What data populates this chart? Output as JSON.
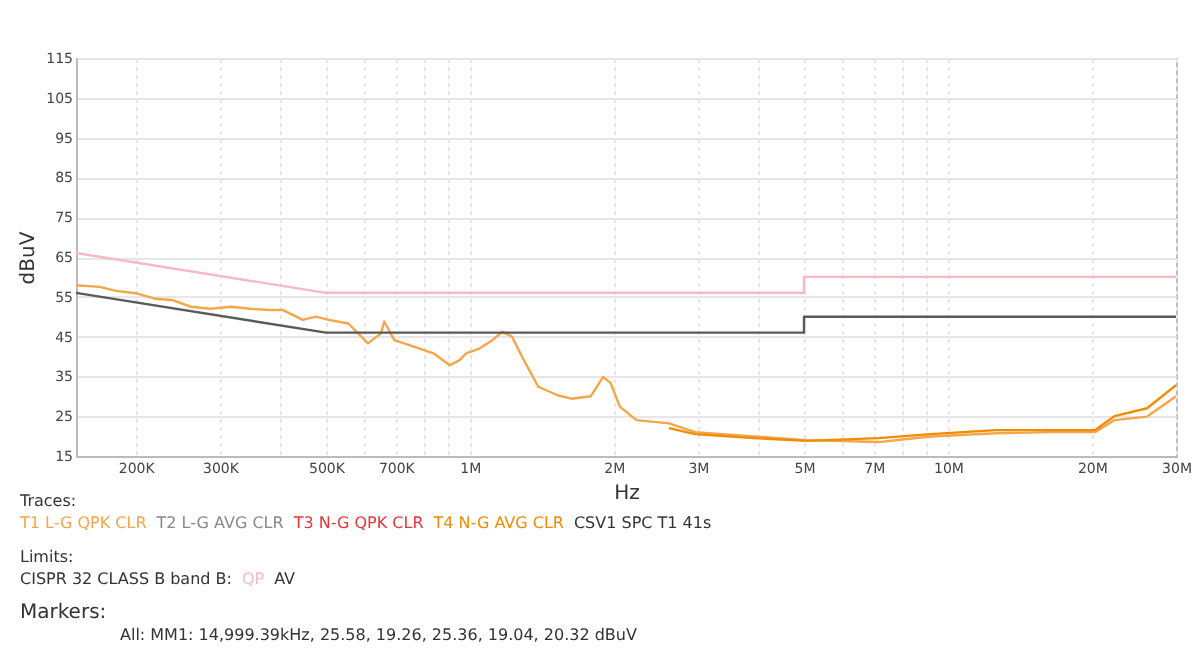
{
  "chart_data": {
    "type": "line",
    "xlabel": "Hz",
    "ylabel": "dBuV",
    "log": "x",
    "grid": true,
    "legend": "bottom",
    "marker": "none",
    "line_style": "solid",
    "xlim": [
      150000,
      30000000
    ],
    "ylim": [
      15,
      115
    ],
    "xticks": [
      {
        "value": 200000,
        "label": "200K"
      },
      {
        "value": 300000,
        "label": "300K"
      },
      {
        "value": 400000,
        "label": null
      },
      {
        "value": 500000,
        "label": "500K"
      },
      {
        "value": 600000,
        "label": null
      },
      {
        "value": 700000,
        "label": "700K"
      },
      {
        "value": 800000,
        "label": null
      },
      {
        "value": 900000,
        "label": null
      },
      {
        "value": 1000000,
        "label": "1M"
      },
      {
        "value": 2000000,
        "label": "2M"
      },
      {
        "value": 3000000,
        "label": "3M"
      },
      {
        "value": 4000000,
        "label": null
      },
      {
        "value": 5000000,
        "label": "5M"
      },
      {
        "value": 6000000,
        "label": null
      },
      {
        "value": 7000000,
        "label": "7M"
      },
      {
        "value": 8000000,
        "label": null
      },
      {
        "value": 9000000,
        "label": null
      },
      {
        "value": 10000000,
        "label": "10M"
      },
      {
        "value": 20000000,
        "label": "20M"
      },
      {
        "value": 30000000,
        "label": "30M"
      }
    ],
    "yticks": [
      15,
      25,
      35,
      45,
      55,
      65,
      75,
      85,
      95,
      105,
      115
    ],
    "series": [
      {
        "name": "T1 L-G QPK CLR",
        "color": "#f5a54a",
        "x": [
          150000,
          168000,
          182000,
          200000,
          220000,
          238000,
          261000,
          287000,
          316000,
          347000,
          382000,
          406000,
          447000,
          476000,
          507000,
          557000,
          612000,
          652000,
          662000,
          695000,
          763000,
          839000,
          908000,
          952000,
          982000,
          1047000,
          1114000,
          1169000,
          1225000,
          1285000,
          1390000,
          1530000,
          1630000,
          1790000,
          1900000,
          1970000,
          2060000,
          2230000,
          2610000,
          2960000,
          3930000,
          5060000,
          7160000,
          9200000,
          12600000,
          16300000,
          20300000,
          22300000,
          26100000,
          30000000
        ],
        "values": [
          57.9,
          57.5,
          56.5,
          55.9,
          54.5,
          54.2,
          52.5,
          52,
          52.5,
          52,
          51.7,
          51.7,
          49.2,
          50,
          49.2,
          48.3,
          43.3,
          45.8,
          48.8,
          44.1,
          42.5,
          40.8,
          37.8,
          39.1,
          40.8,
          42,
          44.1,
          46.2,
          45,
          40,
          32.4,
          30.2,
          29.4,
          30,
          34.9,
          33.3,
          27.4,
          24,
          23.2,
          21,
          19.9,
          19,
          18.5,
          19.9,
          20.7,
          21,
          21,
          24,
          24.9,
          30
        ]
      },
      {
        "name": "T4 N-G AVG CLR",
        "color": "#f08c00",
        "x": [
          2610000,
          2960000,
          3930000,
          5060000,
          7160000,
          9200000,
          12600000,
          16300000,
          20300000,
          22300000,
          26100000,
          30000000
        ],
        "values": [
          22,
          20.5,
          19.5,
          18.8,
          19.5,
          20.5,
          21.5,
          21.5,
          21.5,
          25,
          27,
          32.8
        ]
      },
      {
        "name": "QP",
        "color": "#f7b9c4",
        "x": [
          150000,
          500000,
          5000000,
          5000000,
          30000000
        ],
        "values": [
          66,
          56,
          56,
          60,
          60
        ]
      },
      {
        "name": "AV",
        "color": "#5a5a5a",
        "x": [
          150000,
          500000,
          5000000,
          5000000,
          30000000
        ],
        "values": [
          56,
          46,
          46,
          50,
          50
        ]
      }
    ],
    "annotations": [
      "Traces:",
      "T2 L-G AVG CLR",
      "T3 N-G QPK CLR",
      "CSV1 SPC T1 41s",
      "Limits:",
      "CISPR 32 CLASS B band B:",
      "Markers:",
      "All: MM1: 14,999.39kHz, 25.58, 19.26, 25.36, 19.04, 20.32 dBuV"
    ]
  }
}
